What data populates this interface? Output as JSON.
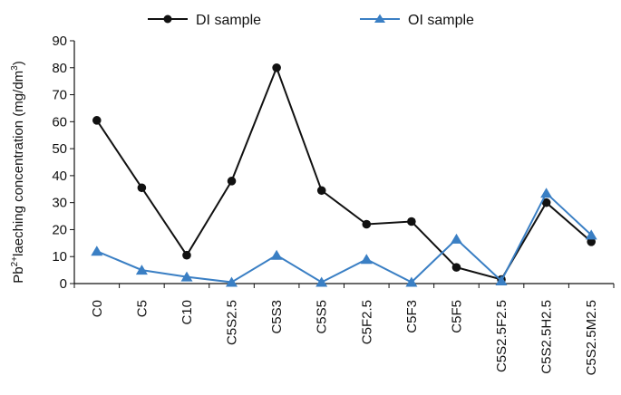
{
  "chart_data": {
    "type": "line",
    "categories": [
      "C0",
      "C5",
      "C10",
      "C5S2.5",
      "C5S3",
      "C5S5",
      "C5F2.5",
      "C5F3",
      "C5F5",
      "C5S2.5F2.5",
      "C5S2.5H2.5",
      "C5S2.5M2.5"
    ],
    "series": [
      {
        "name": "DI sample",
        "color": "#111111",
        "marker": "circle",
        "values": [
          60.5,
          35.5,
          10.5,
          38,
          80,
          34.5,
          22,
          23,
          6,
          1.5,
          30,
          15.5
        ]
      },
      {
        "name": "OI sample",
        "color": "#3a7fc4",
        "marker": "triangle",
        "values": [
          12,
          5,
          2.5,
          0.5,
          10.5,
          0.5,
          9,
          0.5,
          16.5,
          1,
          33.5,
          18
        ]
      }
    ],
    "ylabel_parts": {
      "pre": "Pb",
      "sup1": "2+",
      "mid": "laeching concentration (mg/dm",
      "sup2": "3",
      "post": ")"
    },
    "xlabel": "",
    "ylim": [
      0,
      90
    ],
    "yticks": [
      0,
      10,
      20,
      30,
      40,
      50,
      60,
      70,
      80,
      90
    ],
    "grid": false,
    "legend_position": "top"
  }
}
